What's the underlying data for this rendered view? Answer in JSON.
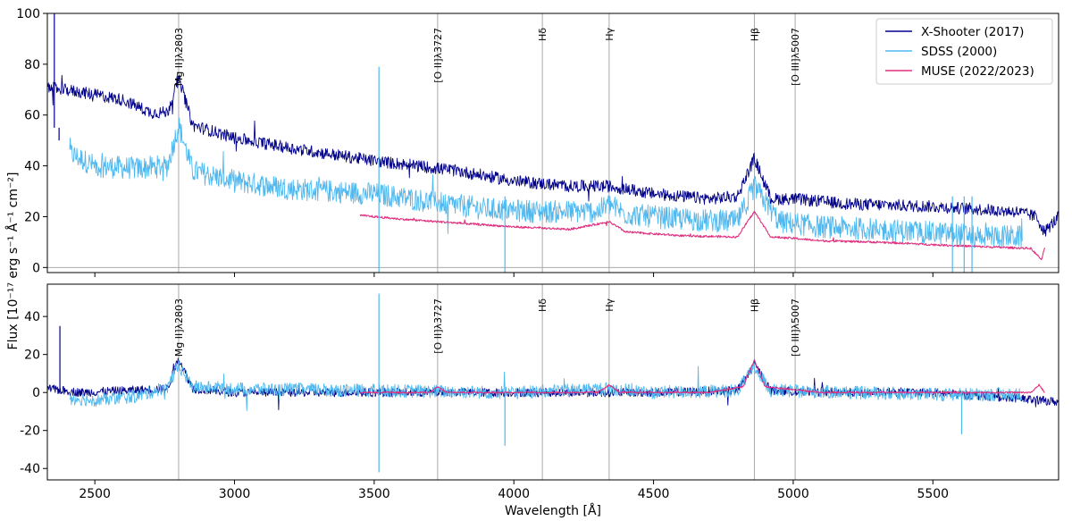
{
  "chart_data": {
    "type": "line",
    "xlabel": "Wavelength [Å]",
    "ylabel": "Flux [10⁻¹⁷ erg s⁻¹ Å⁻¹ cm⁻²]",
    "xlim": [
      2330,
      5950
    ],
    "xticks": [
      2500,
      3000,
      3500,
      4000,
      4500,
      5000,
      5500
    ],
    "colors": {
      "xshooter": "#00008b",
      "sdss": "#4fb8ef",
      "muse": "#e0307f",
      "vline": "#aaaaaa"
    },
    "legend": {
      "position": "top-right",
      "entries": [
        {
          "key": "xshooter",
          "label": "X-Shooter (2017)"
        },
        {
          "key": "sdss",
          "label": "SDSS (2000)"
        },
        {
          "key": "muse",
          "label": "MUSE (2022/2023)"
        }
      ]
    },
    "lines": [
      {
        "label": "Mg II]λ2803",
        "x": 2800
      },
      {
        "label": "[O II]λ3727",
        "x": 3727
      },
      {
        "label": "Hδ",
        "x": 4102
      },
      {
        "label": "Hγ",
        "x": 4341
      },
      {
        "label": "Hβ",
        "x": 4861
      },
      {
        "label": "[O III]λ5007",
        "x": 5007
      }
    ],
    "panels": [
      {
        "name": "top",
        "ylim": [
          -2,
          100
        ],
        "yticks": [
          0,
          20,
          40,
          60,
          80,
          100
        ],
        "zero_line": true,
        "series": [
          {
            "name": "SDSS (2000)",
            "key": "sdss",
            "x": [
              2410,
              2500,
              2650,
              2760,
              2800,
              2850,
              3000,
              3200,
              3500,
              3700,
              3900,
              4100,
              4300,
              4341,
              4400,
              4600,
              4800,
              4861,
              4950,
              5100,
              5300,
              5600,
              5820
            ],
            "y": [
              45,
              40,
              39,
              40,
              56,
              38,
              34,
              31,
              29,
              26,
              23,
              22,
              22,
              25,
              21,
              19,
              18,
              32,
              18,
              16,
              15,
              13,
              12
            ],
            "noise": 4.5
          },
          {
            "name": "X-Shooter (2017)",
            "key": "xshooter",
            "x": [
              2330,
              2450,
              2600,
              2700,
              2760,
              2800,
              2850,
              3000,
              3200,
              3500,
              3800,
              4000,
              4200,
              4341,
              4500,
              4700,
              4800,
              4861,
              4920,
              5000,
              5200,
              5500,
              5800,
              5870,
              5900,
              5950
            ],
            "y": [
              71,
              69,
              66,
              61,
              61,
              75,
              56,
              51,
              47,
              42,
              38,
              34,
              32,
              32,
              29,
              27,
              28,
              43,
              27,
              27,
              25,
              24,
              22,
              20,
              14,
              20
            ],
            "noise": 2.4
          },
          {
            "name": "MUSE (2022/2023)",
            "key": "muse",
            "x": [
              3450,
              3600,
              3800,
              4000,
              4200,
              4341,
              4400,
              4600,
              4800,
              4861,
              4920,
              5000,
              5100,
              5300,
              5600,
              5850,
              5890,
              5900
            ],
            "y": [
              20.5,
              19,
              17.5,
              16,
              15,
              18,
              14,
              12.5,
              12,
              22,
              12,
              11.5,
              10.5,
              10,
              8.5,
              7.5,
              3,
              8
            ],
            "noise": 0.4
          }
        ]
      },
      {
        "name": "bottom",
        "ylim": [
          -46,
          57
        ],
        "yticks": [
          -40,
          -20,
          0,
          20,
          40
        ],
        "zero_line": false,
        "series": [
          {
            "name": "X-Shooter (2017)",
            "key": "xshooter",
            "x": [
              2330,
              2450,
              2760,
              2800,
              2850,
              3000,
              3500,
              4000,
              4500,
              4800,
              4861,
              4920,
              5200,
              5500,
              5800,
              5950
            ],
            "y": [
              2,
              0,
              2,
              18,
              2,
              0,
              0,
              0,
              0,
              1,
              15,
              1,
              0,
              0,
              -3,
              -5
            ],
            "noise": 2.3
          },
          {
            "name": "SDSS (2000)",
            "key": "sdss",
            "x": [
              2410,
              2500,
              2650,
              2760,
              2800,
              2850,
              3000,
              3500,
              4000,
              4341,
              4500,
              4800,
              4861,
              4920,
              5200,
              5500,
              5820
            ],
            "y": [
              -3,
              -4,
              -2,
              3,
              14,
              3,
              2,
              1,
              0,
              2,
              0,
              1,
              13,
              1,
              0,
              -1,
              -1
            ],
            "noise": 3.5
          },
          {
            "name": "MUSE (2022/2023)",
            "key": "muse",
            "x": [
              3450,
              3700,
              3727,
              3760,
              4000,
              4300,
              4341,
              4380,
              4700,
              4820,
              4861,
              4900,
              5100,
              5500,
              5850,
              5880,
              5900
            ],
            "y": [
              0,
              0,
              3,
              0,
              0,
              0,
              4,
              0,
              0,
              3,
              17,
              3,
              0,
              0,
              0,
              4,
              0
            ],
            "noise": 0.4
          }
        ]
      }
    ]
  }
}
